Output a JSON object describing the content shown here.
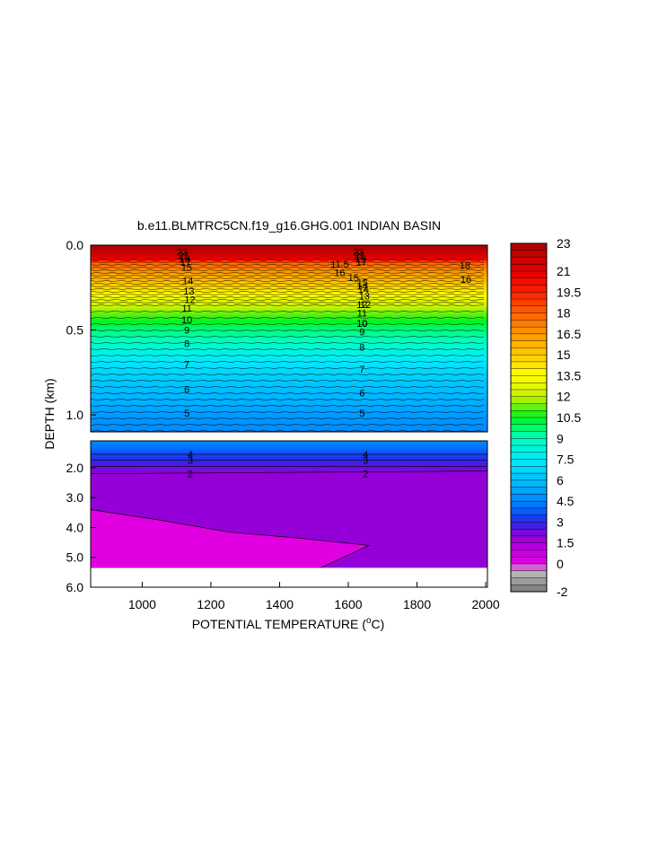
{
  "chart_data": {
    "type": "heatmap",
    "title": "b.e11.BLMTRC5CN.f19_g16.GHG.001 INDIAN BASIN",
    "xlabel_main": "POTENTIAL TEMPERATURE (",
    "xlabel_unit": "o",
    "xlabel_end": "C)",
    "ylabel": "DEPTH (km)",
    "xlim": [
      850,
      2005
    ],
    "x_ticks": [
      "1000",
      "1200",
      "1400",
      "1600",
      "1800",
      "2000"
    ],
    "x_tick_values": [
      1000,
      1200,
      1400,
      1600,
      1800,
      2000
    ],
    "upper_panel": {
      "ylim": [
        0.0,
        1.1
      ],
      "y_ticks": [
        "0.0",
        "0.5",
        "1.0"
      ],
      "y_tick_values": [
        0.0,
        0.5,
        1.0
      ]
    },
    "lower_panel": {
      "ylim": [
        1.1,
        6.0
      ],
      "y_ticks": [
        "2.0",
        "3.0",
        "4.0",
        "5.0",
        "6.0"
      ],
      "y_tick_values": [
        2.0,
        3.0,
        4.0,
        5.0,
        6.0
      ],
      "seafloor_depth_km": 5.35
    },
    "temperature_profile_depth_km": [
      0.0,
      0.07,
      0.1,
      0.15,
      0.2,
      0.25,
      0.3,
      0.35,
      0.4,
      0.45,
      0.5,
      0.55,
      0.6,
      0.7,
      0.8,
      0.9,
      1.0,
      1.1,
      1.3,
      1.5,
      1.7,
      1.9,
      2.1,
      2.2
    ],
    "temperature_profile_value": [
      23,
      21,
      18,
      16.5,
      15.5,
      14.5,
      13.2,
      12.2,
      11.2,
      10.4,
      9.6,
      9.0,
      8.4,
      7.2,
      6.3,
      5.6,
      5.0,
      4.6,
      4.1,
      3.5,
      3.0,
      2.6,
      2.1,
      1.9
    ],
    "contour_labels_upper": [
      {
        "x": 1130,
        "values": [
          "23",
          "21",
          "19",
          "17",
          "15",
          "14",
          "13",
          "12",
          "11",
          "10",
          "9",
          "8",
          "7",
          "6",
          "5"
        ],
        "depths": [
          0.04,
          0.06,
          0.08,
          0.1,
          0.13,
          0.21,
          0.27,
          0.32,
          0.37,
          0.44,
          0.5,
          0.58,
          0.7,
          0.85,
          0.99
        ]
      },
      {
        "x": 1640,
        "values": [
          "23",
          "21",
          "19",
          "17",
          "15",
          "14",
          "13",
          "12",
          "11",
          "10",
          "9",
          "8",
          "7",
          "6",
          "5"
        ],
        "depths": [
          0.04,
          0.06,
          0.08,
          0.1,
          0.22,
          0.26,
          0.3,
          0.35,
          0.4,
          0.46,
          0.51,
          0.6,
          0.73,
          0.87,
          0.99
        ]
      },
      {
        "x": 1950,
        "values": [
          "18",
          "16"
        ],
        "depths": [
          0.12,
          0.2
        ]
      }
    ],
    "contour_labels_lower": [
      {
        "values": [
          "4",
          "3",
          "2"
        ],
        "depths": [
          1.55,
          1.75,
          2.2
        ]
      }
    ],
    "contour_label_x_lower": [
      1140,
      1650
    ],
    "extra_labels": [
      "11.5",
      "16",
      "15",
      "10",
      "12",
      "14"
    ],
    "colorbar": {
      "min": -2,
      "max": 23,
      "step": 0.5,
      "ticks": [
        "23",
        "21",
        "19.5",
        "18",
        "16.5",
        "15",
        "13.5",
        "12",
        "10.5",
        "9",
        "7.5",
        "6",
        "4.5",
        "3",
        "1.5",
        "0",
        "-2"
      ],
      "tick_values": [
        23,
        21,
        19.5,
        18,
        16.5,
        15,
        13.5,
        12,
        10.5,
        9,
        7.5,
        6,
        4.5,
        3,
        1.5,
        0,
        -2
      ]
    }
  }
}
